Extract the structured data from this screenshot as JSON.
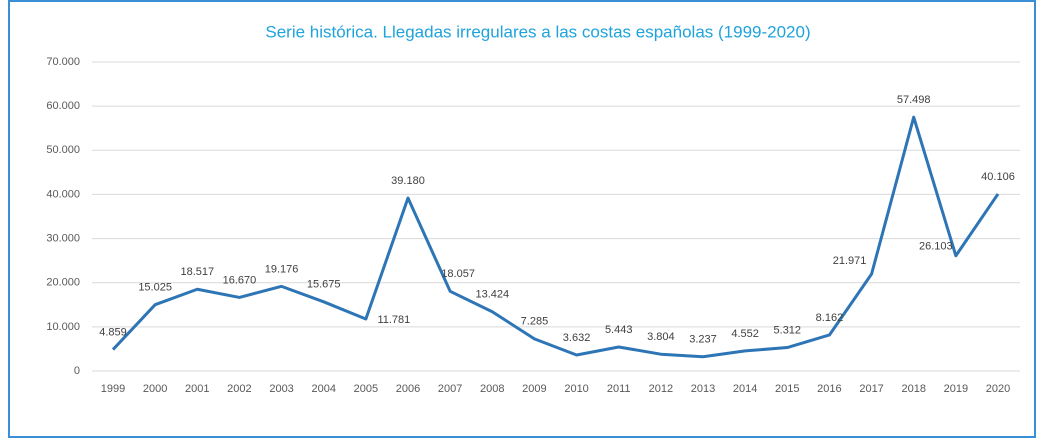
{
  "chart_data": {
    "type": "line",
    "title": "Serie histórica. Llegadas irregulares a las costas españolas (1999-2020)",
    "categories": [
      "1999",
      "2000",
      "2001",
      "2002",
      "2003",
      "2004",
      "2005",
      "2006",
      "2007",
      "2008",
      "2009",
      "2010",
      "2011",
      "2012",
      "2013",
      "2014",
      "2015",
      "2016",
      "2017",
      "2018",
      "2019",
      "2020"
    ],
    "values": [
      4859,
      15025,
      18517,
      16670,
      19176,
      15675,
      11781,
      39180,
      18057,
      13424,
      7285,
      3632,
      5443,
      3804,
      3237,
      4552,
      5312,
      8162,
      21971,
      57498,
      26103,
      40106
    ],
    "value_labels": [
      "4.859",
      "15.025",
      "18.517",
      "16.670",
      "19.176",
      "15.675",
      "11.781",
      "39.180",
      "18.057",
      "13.424",
      "7.285",
      "3.632",
      "5.443",
      "3.804",
      "3.237",
      "4.552",
      "5.312",
      "8.162",
      "21.971",
      "57.498",
      "26.103",
      "40.106"
    ],
    "color": "#2e75b6",
    "ylim": [
      0,
      70000
    ],
    "yticks": [
      0,
      {
        "value": 10000,
        "label": "10.000"
      },
      {
        "value": 20000,
        "label": "20.000"
      },
      {
        "value": 30000,
        "label": "30.000"
      },
      {
        "value": 40000,
        "label": "40.000"
      },
      {
        "value": 50000,
        "label": "50.000"
      },
      {
        "value": 60000,
        "label": "60.000"
      },
      {
        "value": 70000,
        "label": "70.000"
      }
    ],
    "grid": true
  }
}
